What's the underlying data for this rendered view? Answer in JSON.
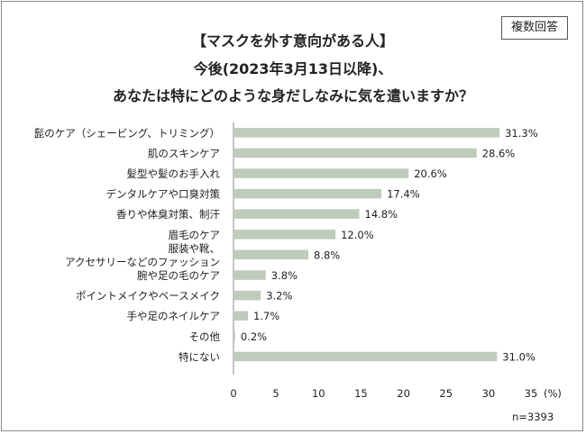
{
  "badge": "複数回答",
  "title_lines": [
    "【マスクを外す意向がある人】",
    "今後(2023年3月13日以降)、",
    "あなたは特にどのような身だしなみに気を遣いますか？"
  ],
  "sample_note": "n=3393",
  "chart_data": {
    "type": "bar",
    "orientation": "horizontal",
    "title": "【マスクを外す意向がある人】 今後(2023年3月13日以降)、 あなたは特にどのような身だしなみに気を遣いますか？",
    "categories": [
      [
        "髭のケア（シェービング、トリミング）"
      ],
      [
        "肌のスキンケア"
      ],
      [
        "髪型や髪のお手入れ"
      ],
      [
        "デンタルケアや口臭対策"
      ],
      [
        "香りや体臭対策、制汗"
      ],
      [
        "眉毛のケア"
      ],
      [
        "服装や靴、",
        "アクセサリーなどのファッション"
      ],
      [
        "腕や足の毛のケア"
      ],
      [
        "ポイントメイクやベースメイク"
      ],
      [
        "手や足のネイルケア"
      ],
      [
        "その他"
      ],
      [
        "特にない"
      ]
    ],
    "values": [
      31.3,
      28.6,
      20.6,
      17.4,
      14.8,
      12.0,
      8.8,
      3.8,
      3.2,
      1.7,
      0.2,
      31.0
    ],
    "value_labels": [
      "31.3%",
      "28.6%",
      "20.6%",
      "17.4%",
      "14.8%",
      "12.0%",
      "8.8%",
      "3.8%",
      "3.2%",
      "1.7%",
      "0.2%",
      "31.0%"
    ],
    "xlim": [
      0,
      35
    ],
    "xticks": [
      "0",
      "5",
      "10",
      "15",
      "20",
      "25",
      "30",
      "35"
    ],
    "x_unit": "(%)",
    "grid": false,
    "bar_color": "#bfcbbb",
    "axis_color": "#888888"
  }
}
